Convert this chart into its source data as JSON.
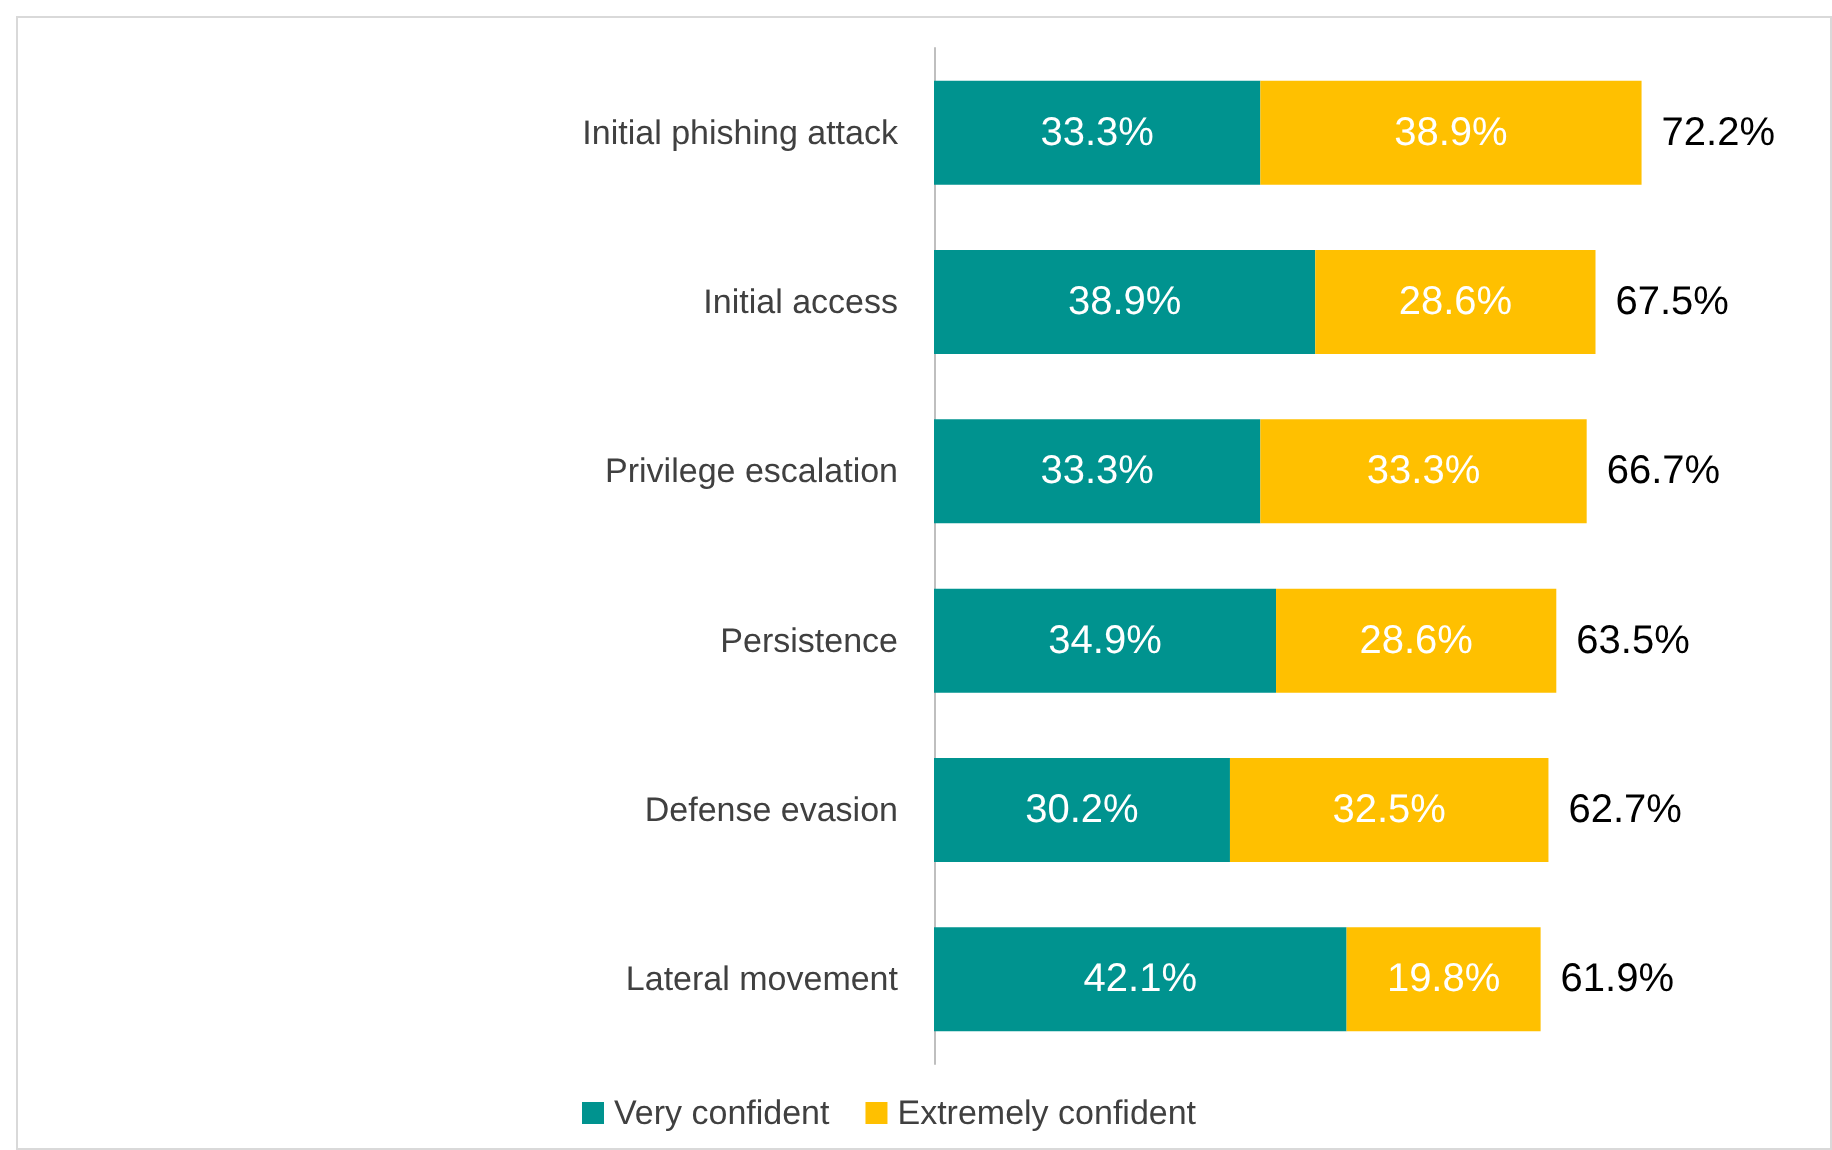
{
  "chart_data": {
    "type": "bar",
    "orientation": "horizontal",
    "stacked": true,
    "categories": [
      "Initial phishing attack",
      "Initial access",
      "Privilege escalation",
      "Persistence",
      "Defense evasion",
      "Lateral movement"
    ],
    "series": [
      {
        "name": "Very confident",
        "color": "#00938f",
        "values": [
          33.3,
          38.9,
          33.3,
          34.9,
          30.2,
          42.1
        ],
        "value_labels": [
          "33.3%",
          "38.9%",
          "33.3%",
          "34.9%",
          "30.2%",
          "42.1%"
        ]
      },
      {
        "name": "Extremely confident",
        "color": "#ffc000",
        "values": [
          38.9,
          28.6,
          33.3,
          28.6,
          32.5,
          19.8
        ],
        "value_labels": [
          "38.9%",
          "28.6%",
          "33.3%",
          "28.6%",
          "32.5%",
          "19.8%"
        ]
      }
    ],
    "totals": [
      "72.2%",
      "67.5%",
      "66.7%",
      "63.5%",
      "62.7%",
      "61.9%"
    ],
    "legend": "bottom"
  }
}
